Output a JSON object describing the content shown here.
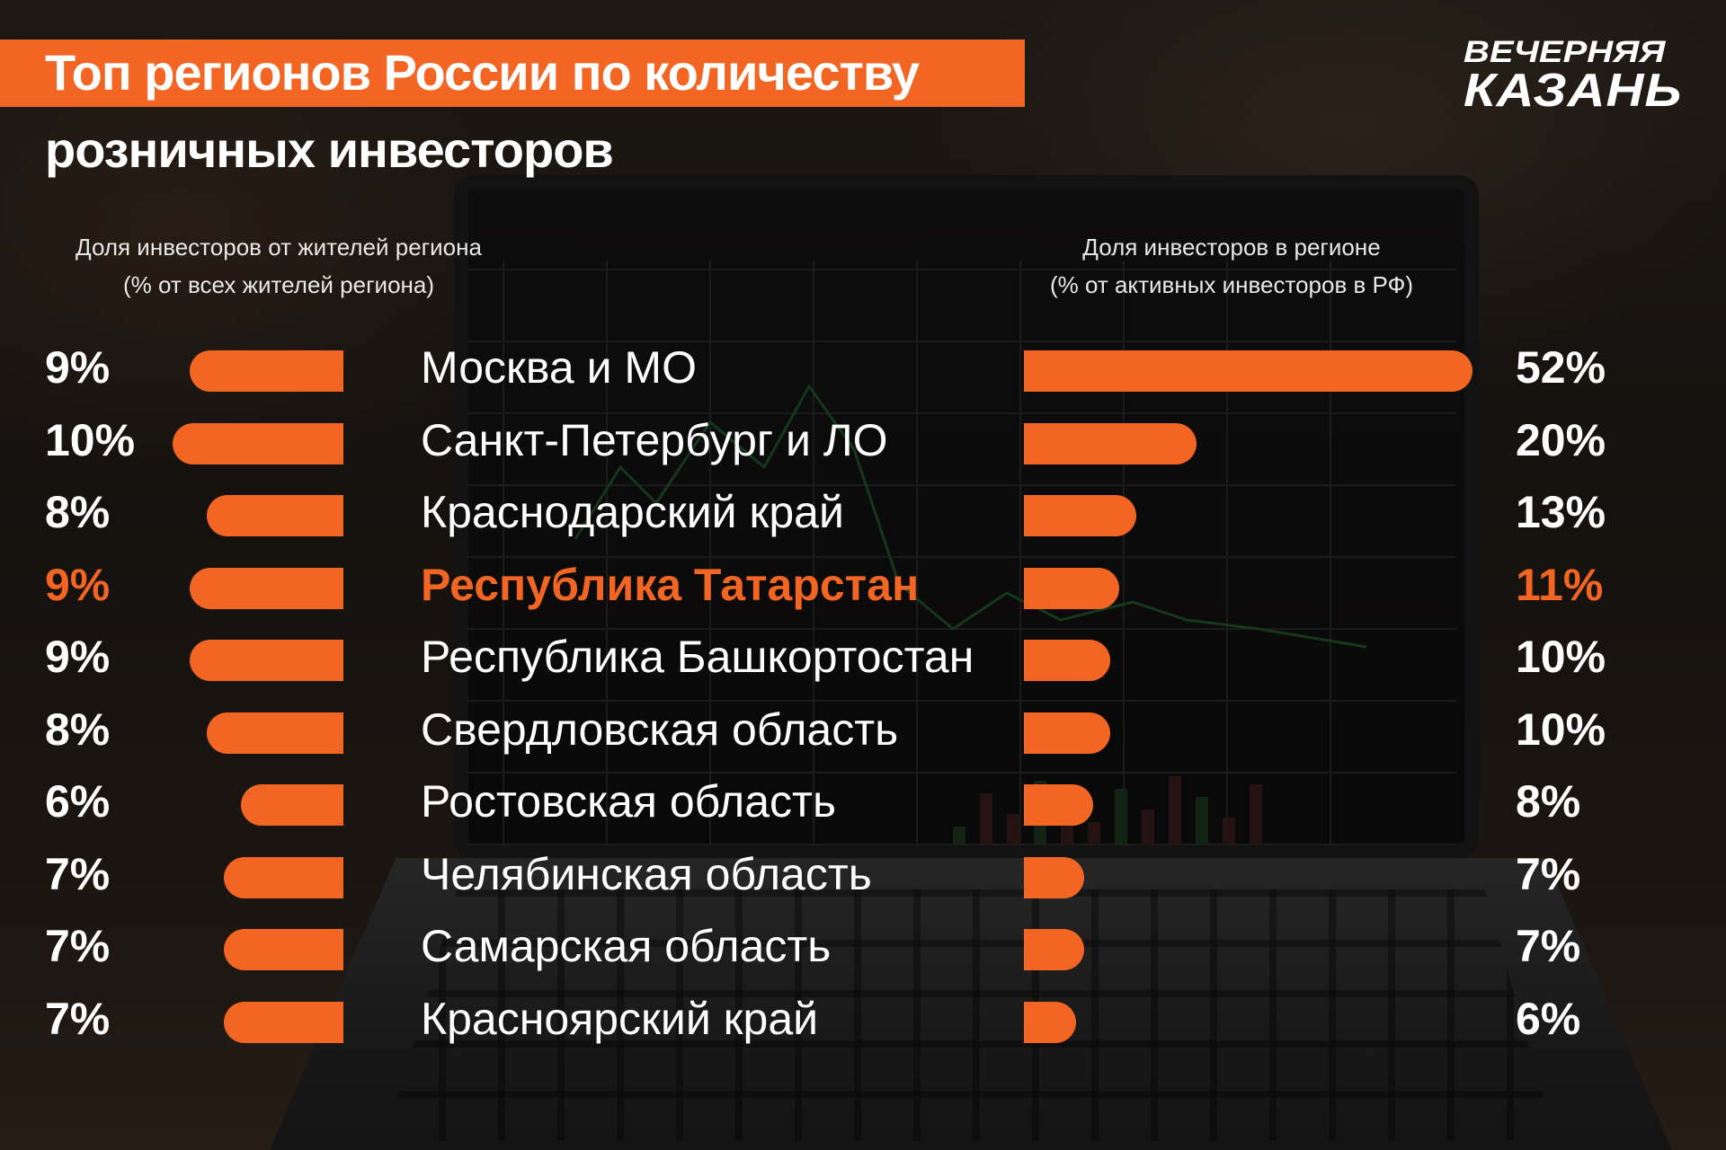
{
  "title_line1": "Топ регионов России по количеству",
  "title_line2": "розничных инвесторов",
  "logo": {
    "line1": "ВЕЧЕРНЯЯ",
    "line2": "КАЗАНЬ"
  },
  "left_header": {
    "line1": "Доля инвесторов от жителей региона",
    "line2": "(% от всех жителей региона)"
  },
  "right_header": {
    "line1": "Доля инвесторов в регионе",
    "line2": "(% от активных инвесторов в РФ)"
  },
  "accent_color": "#f26522",
  "highlight_region": "Республика Татарстан",
  "chart_data": {
    "type": "bar",
    "title": "Топ регионов России по количеству розничных инвесторов",
    "categories": [
      "Москва и МО",
      "Санкт-Петербург и ЛО",
      "Краснодарский край",
      "Республика Татарстан",
      "Республика Башкортостан",
      "Свердловская область",
      "Ростовская область",
      "Челябинская область",
      "Самарская область",
      "Красноярский край"
    ],
    "series": [
      {
        "name": "Доля инвесторов от жителей региона",
        "values": [
          9,
          10,
          8,
          9,
          9,
          8,
          6,
          7,
          7,
          7
        ],
        "labels": [
          "9%",
          "10%",
          "8%",
          "9%",
          "9%",
          "8%",
          "6%",
          "7%",
          "7%",
          "7%"
        ]
      },
      {
        "name": "Доля инвесторов в регионе",
        "values": [
          52,
          20,
          13,
          11,
          10,
          10,
          8,
          7,
          7,
          6
        ],
        "labels": [
          "52%",
          "20%",
          "13%",
          "11%",
          "10%",
          "10%",
          "8%",
          "7%",
          "7%",
          "6%"
        ]
      }
    ]
  }
}
